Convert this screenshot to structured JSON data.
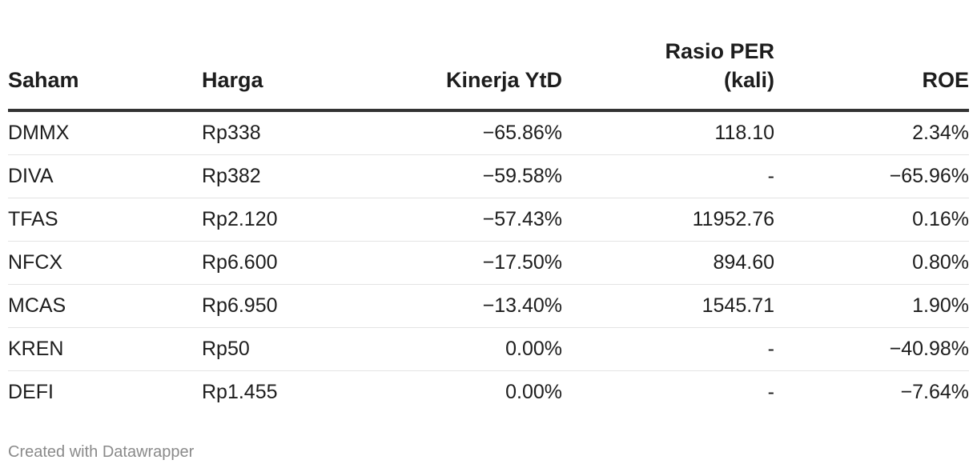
{
  "chart_data": {
    "type": "table",
    "columns": [
      "Saham",
      "Harga",
      "Kinerja YtD",
      "Rasio PER (kali)",
      "ROE"
    ],
    "header": {
      "saham": "Saham",
      "harga": "Harga",
      "kinerja": "Kinerja YtD",
      "per_line1": "Rasio PER",
      "per_line2": "(kali)",
      "roe": "ROE"
    },
    "rows": [
      {
        "saham": "DMMX",
        "harga": "Rp338",
        "kinerja": "−65.86%",
        "per": "118.10",
        "roe": "2.34%"
      },
      {
        "saham": "DIVA",
        "harga": "Rp382",
        "kinerja": "−59.58%",
        "per": "-",
        "roe": "−65.96%"
      },
      {
        "saham": "TFAS",
        "harga": "Rp2.120",
        "kinerja": "−57.43%",
        "per": "11952.76",
        "roe": "0.16%"
      },
      {
        "saham": "NFCX",
        "harga": "Rp6.600",
        "kinerja": "−17.50%",
        "per": "894.60",
        "roe": "0.80%"
      },
      {
        "saham": "MCAS",
        "harga": "Rp6.950",
        "kinerja": "−13.40%",
        "per": "1545.71",
        "roe": "1.90%"
      },
      {
        "saham": "KREN",
        "harga": "Rp50",
        "kinerja": "0.00%",
        "per": "-",
        "roe": "−40.98%"
      },
      {
        "saham": "DEFI",
        "harga": "Rp1.455",
        "kinerja": "0.00%",
        "per": "-",
        "roe": "−7.64%"
      }
    ]
  },
  "footer": {
    "credit": "Created with Datawrapper"
  }
}
